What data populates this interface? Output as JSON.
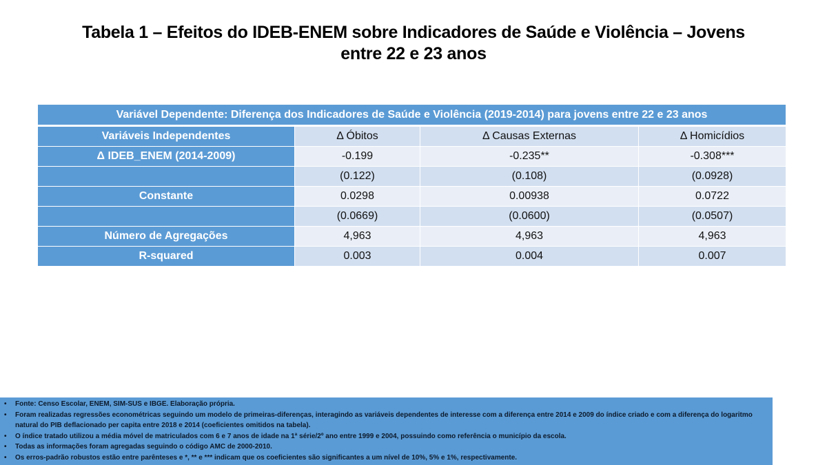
{
  "title": "Tabela 1 – Efeitos do IDEB-ENEM sobre Indicadores de Saúde e Violência – Jovens entre 22 e 23 anos",
  "title_line1": "Tabela 1 – Efeitos do IDEB-ENEM sobre Indicadores de Saúde e Violência – Jovens",
  "title_line2": "entre 22 e 23 anos",
  "table": {
    "caption": "Variável Dependente: Diferença dos Indicadores de Saúde e Violência (2019-2014) para jovens entre 22 e 23 anos",
    "columns": [
      "Variáveis Independentes",
      "Δ Óbitos",
      "Δ Causas Externas",
      "Δ Homicídios"
    ],
    "rows": [
      [
        "Δ IDEB_ENEM (2014-2009)",
        "-0.199",
        "-0.235**",
        "-0.308***"
      ],
      [
        "",
        "(0.122)",
        "(0.108)",
        "(0.0928)"
      ],
      [
        "Constante",
        "0.0298",
        "0.00938",
        "0.0722"
      ],
      [
        "",
        "(0.0669)",
        "(0.0600)",
        "(0.0507)"
      ],
      [
        "Número de Agregações",
        "4,963",
        "4,963",
        "4,963"
      ],
      [
        "R-squared",
        "0.003",
        "0.004",
        "0.007"
      ]
    ]
  },
  "notes": {
    "bullet": "•",
    "items": [
      "Fonte: Censo Escolar, ENEM, SIM-SUS e IBGE. Elaboração própria.",
      "Foram realizadas regressões econométricas seguindo um modelo de primeiras-diferenças, interagindo as variáveis dependentes de interesse com a diferença entre 2014 e 2009 do índice criado e com a diferença do logaritmo natural do PIB deflacionado per capita entre 2018 e 2014 (coeficientes omitidos na tabela).",
      "O índice tratado utilizou a média móvel de matriculados com 6 e 7 anos de idade na 1ª série/2º ano entre 1999 e 2004, possuindo como referência o município da escola.",
      "Todas as informações foram agregadas seguindo o código AMC de 2000-2010.",
      "Os erros-padrão robustos estão entre parênteses e *, ** e *** indicam que os coeficientes são significantes a um nível de 10%, 5% e 1%, respectivamente."
    ]
  },
  "colors": {
    "header_blue": "#5b9bd5",
    "row_dark": "#d2dff0",
    "row_light": "#eaeff7"
  }
}
